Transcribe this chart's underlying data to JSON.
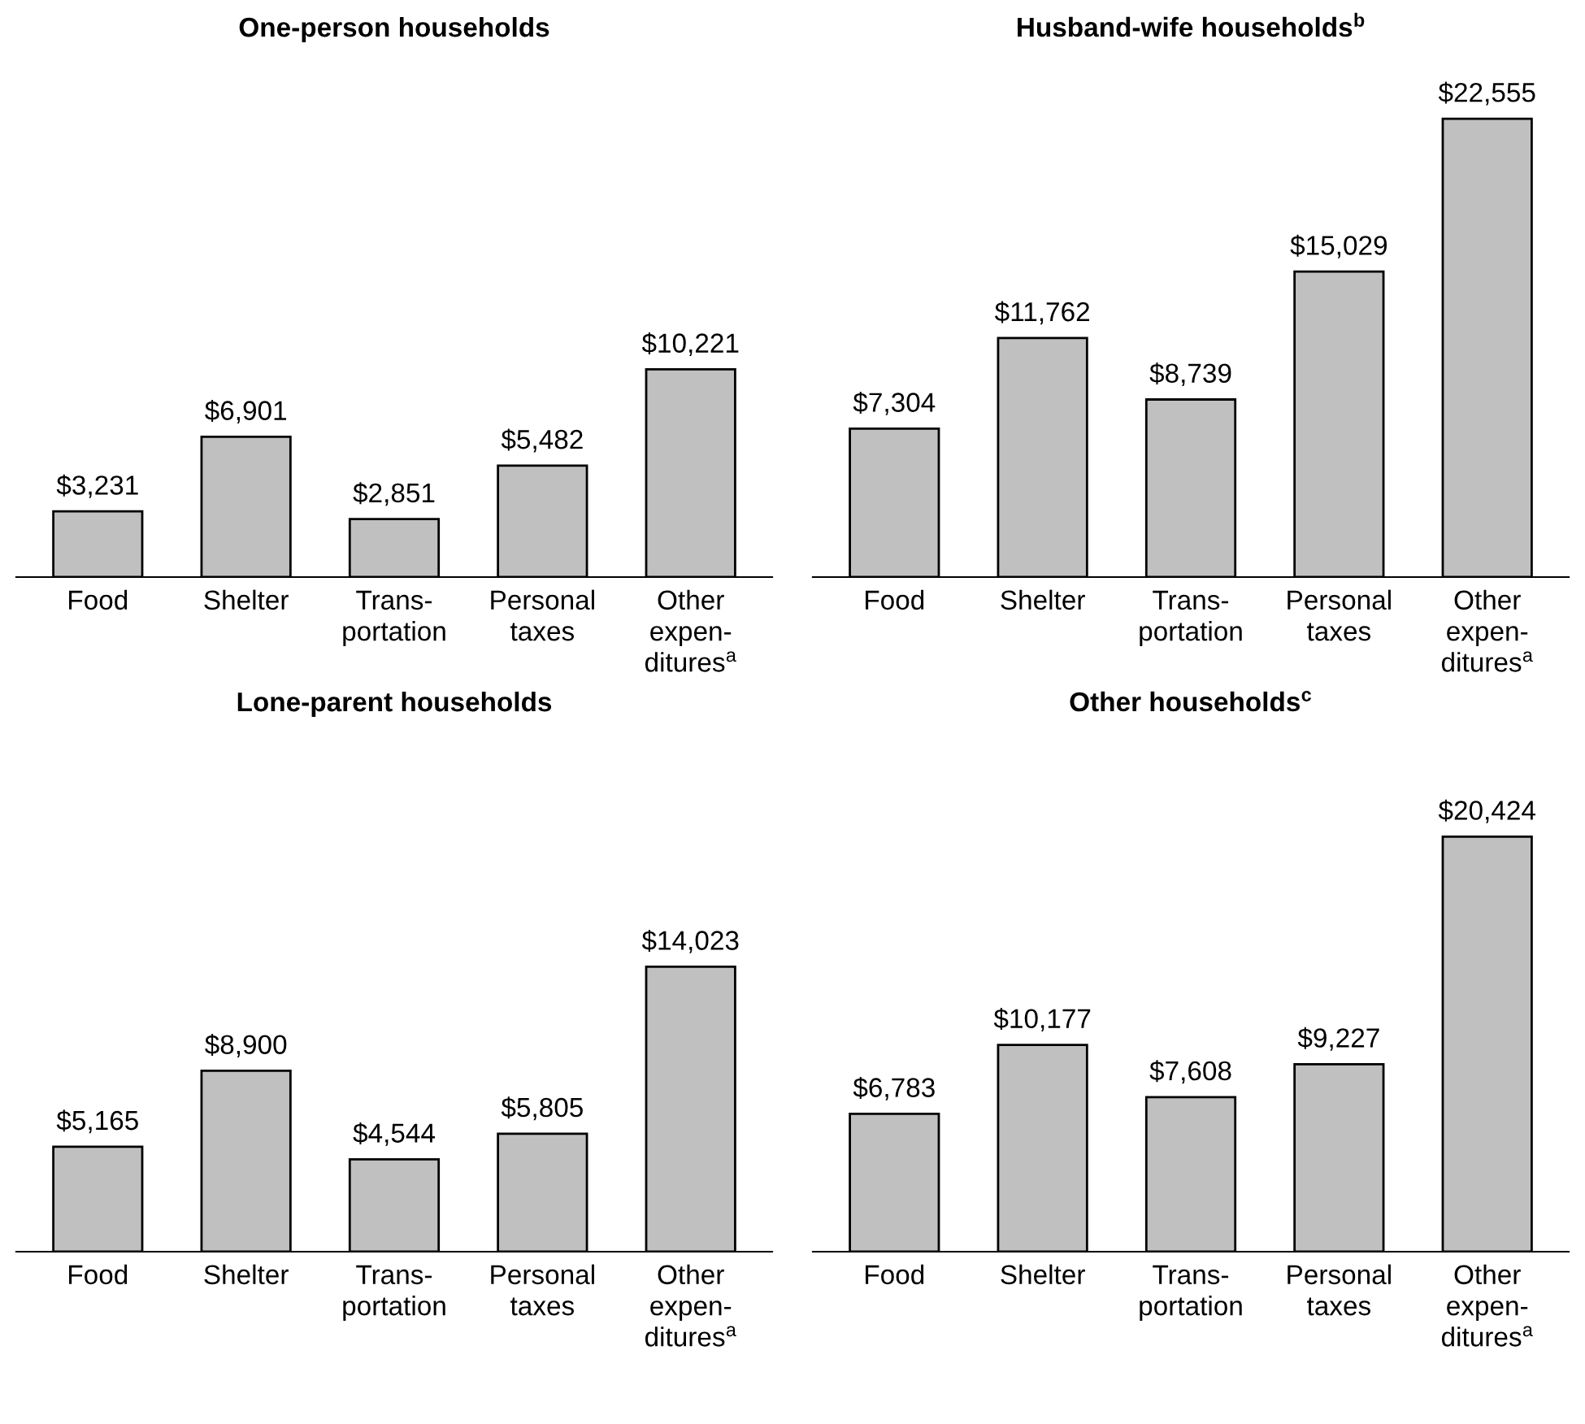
{
  "chart_data": [
    {
      "type": "bar",
      "title": "One-person households",
      "categories": [
        "Food",
        "Shelter",
        "Trans-\nportation",
        "Personal\ntaxes",
        "Other\nexpen-\nditures$^{a}$"
      ],
      "values": [
        3231,
        6901,
        2851,
        5482,
        10221
      ],
      "value_labels": [
        "$3,231",
        "$6,901",
        "$2,851",
        "$5,482",
        "$10,221"
      ],
      "color": "#c0c0c0",
      "grid": false,
      "legend": false
    },
    {
      "type": "bar",
      "title": "Husband-wife households$^{b}$",
      "categories": [
        "Food",
        "Shelter",
        "Trans-\nportation",
        "Personal\ntaxes",
        "Other\nexpen-\nditures$^{a}$"
      ],
      "values": [
        7304,
        11762,
        8739,
        15029,
        22555
      ],
      "value_labels": [
        "$7,304",
        "$11,762",
        "$8,739",
        "$15,029",
        "$22,555"
      ],
      "color": "#c0c0c0",
      "grid": false,
      "legend": false
    },
    {
      "type": "bar",
      "title": "Lone-parent households",
      "categories": [
        "Food",
        "Shelter",
        "Trans-\nportation",
        "Personal\ntaxes",
        "Other\nexpen-\nditures$^{a}$"
      ],
      "values": [
        5165,
        8900,
        4544,
        5805,
        14023
      ],
      "value_labels": [
        "$5,165",
        "$8,900",
        "$4,544",
        "$5,805",
        "$14,023"
      ],
      "color": "#c0c0c0",
      "grid": false,
      "legend": false
    },
    {
      "type": "bar",
      "title": "Other households$^{c}$",
      "categories": [
        "Food",
        "Shelter",
        "Trans-\nportation",
        "Personal\ntaxes",
        "Other\nexpen-\nditures$^{a}$"
      ],
      "values": [
        6783,
        10177,
        7608,
        9227,
        20424
      ],
      "value_labels": [
        "$6,783",
        "$10,177",
        "$7,608",
        "$9,227",
        "$20,424"
      ],
      "color": "#c0c0c0",
      "grid": false,
      "legend": false
    }
  ]
}
